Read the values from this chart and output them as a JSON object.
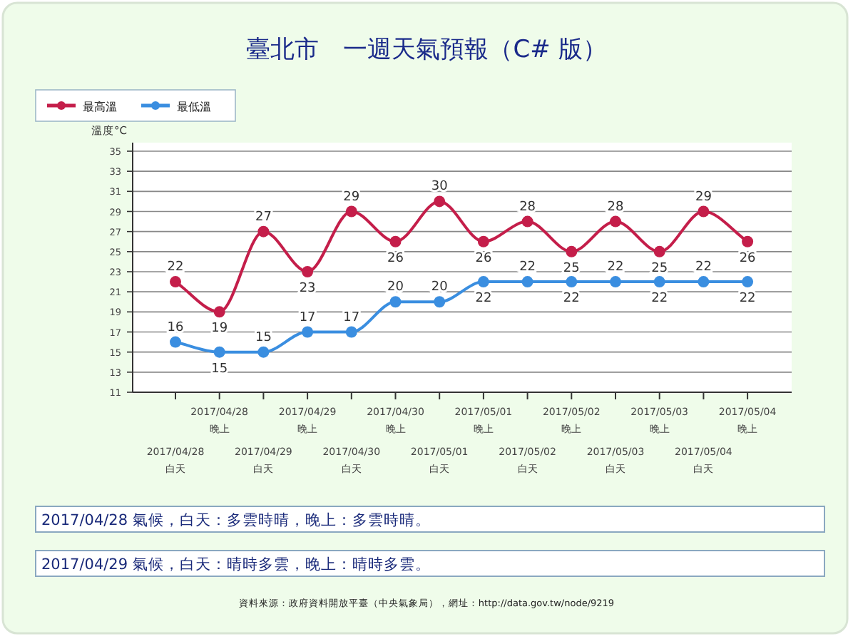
{
  "chart_data": {
    "type": "line",
    "title": "臺北市　一週天氣預報（C# 版）",
    "ylabel": "溫度°C",
    "categories": [
      "2017/04/28 白天",
      "2017/04/28 晚上",
      "2017/04/29 白天",
      "2017/04/29 晚上",
      "2017/04/30 白天",
      "2017/04/30 晚上",
      "2017/05/01 白天",
      "2017/05/01 晚上",
      "2017/05/02 白天",
      "2017/05/02 晚上",
      "2017/05/03 白天",
      "2017/05/03 晚上",
      "2017/05/04 白天",
      "2017/05/04 晚上"
    ],
    "series": [
      {
        "name": "最高溫",
        "color": "#c41e4a",
        "values": [
          22,
          19,
          27,
          23,
          29,
          26,
          30,
          26,
          28,
          25,
          28,
          25,
          29,
          26
        ]
      },
      {
        "name": "最低溫",
        "color": "#3a8ee0",
        "values": [
          16,
          15,
          15,
          17,
          17,
          20,
          20,
          22,
          22,
          22,
          22,
          22,
          22,
          22
        ]
      }
    ],
    "ylim": [
      11,
      35
    ],
    "yticks": [
      11,
      13,
      15,
      17,
      19,
      21,
      23,
      25,
      27,
      29,
      31,
      33,
      35
    ],
    "grid": "y",
    "legend": "top left",
    "marker": "circle",
    "data_labels": true,
    "annotations": [
      "2017/04/28 氣候，白天：多雲時晴，晚上：多雲時晴。",
      "2017/04/29 氣候，白天：晴時多雲，晚上：晴時多雲。",
      "資料來源：政府資料開放平臺（中央氣象局），網址：http://data.gov.tw/node/9219"
    ]
  }
}
